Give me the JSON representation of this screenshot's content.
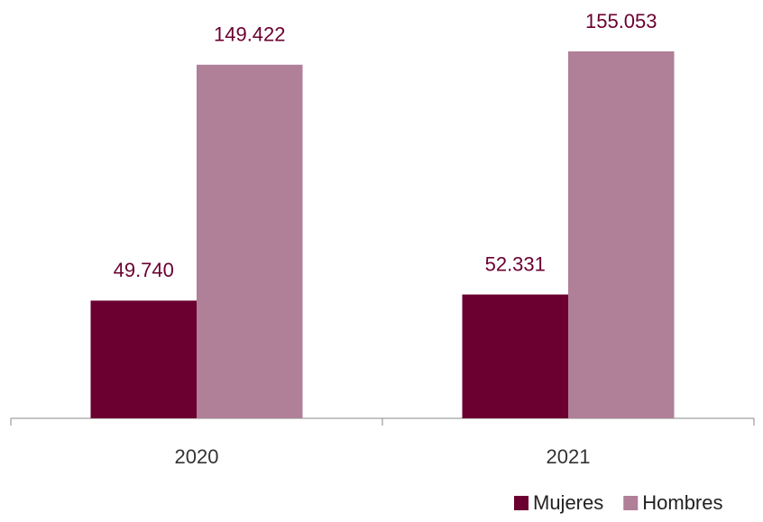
{
  "chart_data": {
    "type": "bar",
    "categories": [
      "2020",
      "2021"
    ],
    "series": [
      {
        "name": "Mujeres",
        "color": "#6b0030",
        "values": [
          49740,
          52331
        ],
        "value_labels": [
          "49.740",
          "52.331"
        ]
      },
      {
        "name": "Hombres",
        "color": "#b07f98",
        "values": [
          149422,
          155053
        ],
        "value_labels": [
          "149.422",
          "155.053"
        ]
      }
    ],
    "legend": "bottom-right"
  }
}
